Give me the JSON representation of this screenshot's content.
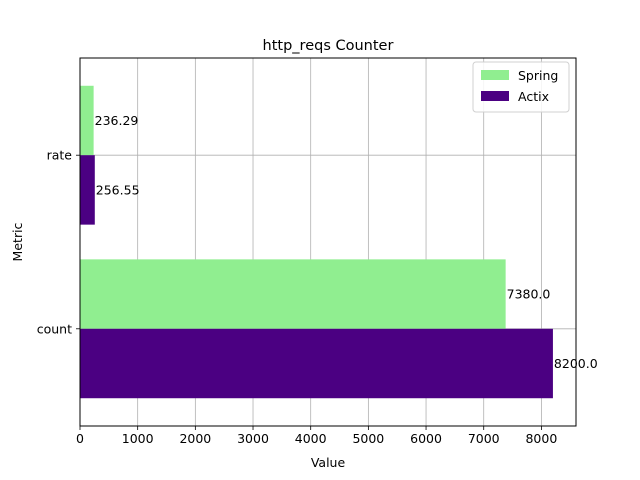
{
  "chart_data": {
    "type": "bar",
    "orientation": "horizontal",
    "title": "http_reqs Counter",
    "xlabel": "Value",
    "ylabel": "Metric",
    "categories": [
      "count",
      "rate"
    ],
    "series": [
      {
        "name": "Spring",
        "color": "#90ee90",
        "values": [
          7380.0,
          236.29
        ],
        "labels": [
          "7380.0",
          "236.29"
        ]
      },
      {
        "name": "Actix",
        "color": "#4b0082",
        "values": [
          8200.0,
          256.55
        ],
        "labels": [
          "8200.0",
          "256.55"
        ]
      }
    ],
    "xlim": [
      0,
      8600
    ],
    "xticks": [
      0,
      1000,
      2000,
      3000,
      4000,
      5000,
      6000,
      7000,
      8000
    ],
    "xtick_labels": [
      "0",
      "1000",
      "2000",
      "3000",
      "4000",
      "5000",
      "6000",
      "7000",
      "8000"
    ],
    "grid": true,
    "legend_position": "top-right"
  }
}
